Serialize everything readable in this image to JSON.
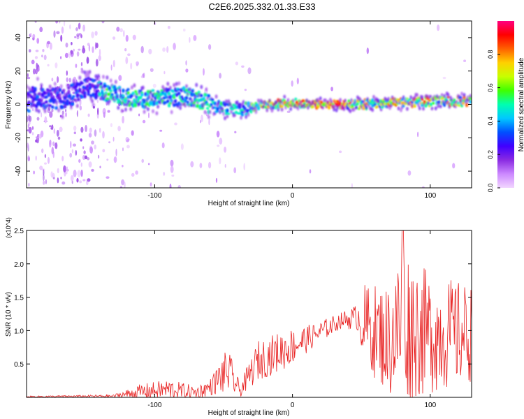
{
  "title": "C2E6.2025.332.01.33.E33",
  "chart_data": [
    {
      "type": "heatmap",
      "xlabel": "Height of straight line (km)",
      "ylabel": "Frequency (Hz)",
      "xlim": [
        -193,
        130
      ],
      "ylim": [
        -50,
        50
      ],
      "xticks": [
        -100,
        0,
        100
      ],
      "yticks": [
        -40,
        -20,
        0,
        20,
        40
      ],
      "colorbar": {
        "label": "Normalized spectral amplitude",
        "range": [
          0.0,
          1.0
        ],
        "ticks": [
          0.0,
          0.2,
          0.4,
          0.6,
          0.8
        ],
        "colors": [
          "#f2d6ff",
          "#cc88ff",
          "#8a2be2",
          "#4000ff",
          "#0050ff",
          "#00c8ff",
          "#00ffb0",
          "#40ff00",
          "#c8ff00",
          "#ffd000",
          "#ff6000",
          "#ff0000",
          "#ff0080"
        ]
      },
      "ridge": [
        {
          "x": -190,
          "f": 5
        },
        {
          "x": -165,
          "f": 3
        },
        {
          "x": -150,
          "f": 11
        },
        {
          "x": -130,
          "f": 6
        },
        {
          "x": -110,
          "f": 3
        },
        {
          "x": -90,
          "f": 4
        },
        {
          "x": -75,
          "f": 5
        },
        {
          "x": -60,
          "f": 0
        },
        {
          "x": -45,
          "f": -3
        },
        {
          "x": -35,
          "f": -3
        },
        {
          "x": -20,
          "f": 0
        },
        {
          "x": 0,
          "f": 1
        },
        {
          "x": 20,
          "f": 0
        },
        {
          "x": 50,
          "f": 0
        },
        {
          "x": 80,
          "f": 1
        },
        {
          "x": 110,
          "f": 2
        },
        {
          "x": 130,
          "f": 2
        }
      ]
    },
    {
      "type": "line",
      "xlabel": "Height of straight line (km)",
      "ylabel": "SNR (10 * v/v)",
      "multiplier": "(x10^4)",
      "xlim": [
        -193,
        130
      ],
      "ylim": [
        0,
        2.5
      ],
      "xticks": [
        -100,
        0,
        100
      ],
      "yticks": [
        0.5,
        1.0,
        1.5,
        2.0,
        2.5
      ],
      "color": "#e82020",
      "envelope": [
        {
          "x": -193,
          "mean": 0.01,
          "amp": 0.01
        },
        {
          "x": -130,
          "mean": 0.02,
          "amp": 0.02
        },
        {
          "x": -110,
          "mean": 0.08,
          "amp": 0.12
        },
        {
          "x": -90,
          "mean": 0.12,
          "amp": 0.15
        },
        {
          "x": -70,
          "mean": 0.07,
          "amp": 0.1
        },
        {
          "x": -60,
          "mean": 0.15,
          "amp": 0.12
        },
        {
          "x": -47,
          "mean": 0.4,
          "amp": 0.35
        },
        {
          "x": -38,
          "mean": 0.1,
          "amp": 0.1
        },
        {
          "x": -25,
          "mean": 0.55,
          "amp": 0.3
        },
        {
          "x": -5,
          "mean": 0.72,
          "amp": 0.3
        },
        {
          "x": 15,
          "mean": 0.92,
          "amp": 0.18
        },
        {
          "x": 35,
          "mean": 1.15,
          "amp": 0.12
        },
        {
          "x": 47,
          "mean": 1.2,
          "amp": 0.2
        },
        {
          "x": 52,
          "mean": 1.1,
          "amp": 0.6
        },
        {
          "x": 70,
          "mean": 0.85,
          "amp": 0.85
        },
        {
          "x": 80,
          "mean": 1.1,
          "amp": 1.2
        },
        {
          "x": 100,
          "mean": 0.95,
          "amp": 0.9
        },
        {
          "x": 130,
          "mean": 0.95,
          "amp": 0.75
        }
      ]
    }
  ]
}
